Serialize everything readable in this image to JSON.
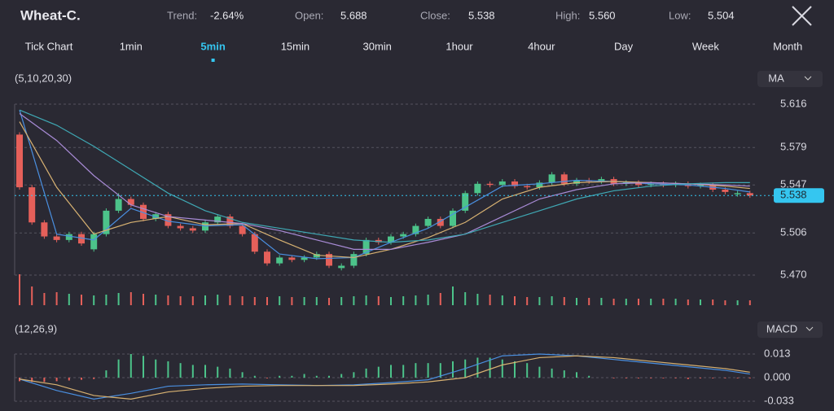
{
  "header": {
    "symbol": "Wheat-C.",
    "trend_label": "Trend:",
    "trend": "-2.64%",
    "open_label": "Open:",
    "open": "5.688",
    "close_label": "Close:",
    "close": "5.538",
    "high_label": "High:",
    "high": "5.560",
    "low_label": "Low:",
    "low": "5.504"
  },
  "tabs": [
    "Tick Chart",
    "1min",
    "5min",
    "15min",
    "30min",
    "1hour",
    "4hour",
    "Day",
    "Week",
    "Month"
  ],
  "active_tab": 2,
  "chart_data": [
    {
      "type": "candlestick",
      "legend": "(5,10,20,30)",
      "indicator": "MA",
      "up_color": "#4cc38a",
      "down_color": "#e5605a",
      "ylim": [
        5.47,
        5.616
      ],
      "yticks": [
        5.616,
        5.579,
        5.547,
        5.506,
        {
          "value": 5.47,
          "label": "5.470"
        }
      ],
      "last_price": {
        "value": 5.538,
        "label": "5.538"
      },
      "open": [
        5.59,
        5.545,
        5.515,
        5.503,
        5.5,
        5.505,
        5.492,
        5.505,
        5.525,
        5.535,
        5.53,
        5.518,
        5.522,
        5.512,
        5.51,
        5.508,
        5.515,
        5.52,
        5.512,
        5.505,
        5.49,
        5.48,
        5.485,
        5.483,
        5.485,
        5.488,
        5.476,
        5.478,
        5.488,
        5.5,
        5.498,
        5.503,
        5.505,
        5.512,
        5.518,
        5.512,
        5.525,
        5.54,
        5.548,
        5.547,
        5.55,
        5.546,
        5.545,
        5.549,
        5.556,
        5.548,
        5.551,
        5.55,
        5.552,
        5.548,
        5.549,
        5.547,
        5.548,
        5.547,
        5.548,
        5.546,
        5.547,
        5.543,
        5.539,
        5.54
      ],
      "high": [
        5.592,
        5.547,
        5.517,
        5.505,
        5.507,
        5.507,
        5.507,
        5.527,
        5.54,
        5.537,
        5.532,
        5.524,
        5.524,
        5.514,
        5.512,
        5.517,
        5.522,
        5.522,
        5.514,
        5.507,
        5.492,
        5.487,
        5.487,
        5.487,
        5.49,
        5.49,
        5.48,
        5.49,
        5.502,
        5.502,
        5.505,
        5.507,
        5.514,
        5.52,
        5.52,
        5.527,
        5.542,
        5.55,
        5.55,
        5.552,
        5.552,
        5.548,
        5.551,
        5.558,
        5.558,
        5.553,
        5.553,
        5.554,
        5.554,
        5.551,
        5.551,
        5.55,
        5.55,
        5.55,
        5.55,
        5.549,
        5.549,
        5.545,
        5.542,
        5.542
      ],
      "low": [
        5.543,
        5.513,
        5.501,
        5.498,
        5.498,
        5.495,
        5.49,
        5.503,
        5.523,
        5.528,
        5.516,
        5.516,
        5.51,
        5.508,
        5.506,
        5.506,
        5.513,
        5.51,
        5.503,
        5.488,
        5.478,
        5.478,
        5.481,
        5.481,
        5.483,
        5.476,
        5.474,
        5.476,
        5.486,
        5.496,
        5.496,
        5.501,
        5.503,
        5.51,
        5.51,
        5.51,
        5.523,
        5.538,
        5.545,
        5.545,
        5.544,
        5.543,
        5.543,
        5.547,
        5.546,
        5.546,
        5.548,
        5.548,
        5.546,
        5.546,
        5.545,
        5.545,
        5.545,
        5.545,
        5.544,
        5.544,
        5.541,
        5.539,
        5.537,
        5.536
      ],
      "close": [
        5.545,
        5.515,
        5.503,
        5.5,
        5.505,
        5.497,
        5.505,
        5.525,
        5.535,
        5.53,
        5.518,
        5.522,
        5.512,
        5.51,
        5.508,
        5.515,
        5.52,
        5.512,
        5.505,
        5.49,
        5.48,
        5.485,
        5.483,
        5.485,
        5.488,
        5.478,
        5.478,
        5.488,
        5.5,
        5.498,
        5.503,
        5.505,
        5.512,
        5.518,
        5.512,
        5.525,
        5.54,
        5.548,
        5.547,
        5.55,
        5.546,
        5.545,
        5.549,
        5.556,
        5.548,
        5.551,
        5.55,
        5.552,
        5.548,
        5.549,
        5.547,
        5.548,
        5.547,
        5.548,
        5.546,
        5.547,
        5.543,
        5.541,
        5.54,
        5.538
      ],
      "series": [
        {
          "color": "#4a8fe0",
          "x": [
            0,
            3,
            6,
            9,
            12,
            15,
            18,
            21,
            24,
            27,
            30,
            33,
            36,
            39,
            42,
            45,
            48,
            51,
            54,
            57,
            59
          ],
          "values": [
            5.611,
            5.505,
            5.5,
            5.527,
            5.516,
            5.512,
            5.513,
            5.488,
            5.484,
            5.485,
            5.498,
            5.51,
            5.528,
            5.546,
            5.548,
            5.551,
            5.55,
            5.548,
            5.547,
            5.544,
            5.541
          ]
        },
        {
          "color": "#d8b272",
          "x": [
            0,
            3,
            6,
            9,
            12,
            15,
            18,
            21,
            24,
            27,
            30,
            33,
            36,
            39,
            42,
            45,
            48,
            51,
            54,
            57,
            59
          ],
          "values": [
            5.601,
            5.545,
            5.505,
            5.515,
            5.52,
            5.513,
            5.514,
            5.5,
            5.487,
            5.485,
            5.492,
            5.502,
            5.515,
            5.535,
            5.545,
            5.549,
            5.55,
            5.549,
            5.548,
            5.546,
            5.544
          ]
        },
        {
          "color": "#a88bd6",
          "x": [
            0,
            3,
            6,
            9,
            12,
            15,
            18,
            21,
            24,
            27,
            30,
            33,
            36,
            39,
            42,
            45,
            48,
            51,
            54,
            57,
            59
          ],
          "values": [
            5.608,
            5.585,
            5.555,
            5.53,
            5.52,
            5.517,
            5.514,
            5.508,
            5.5,
            5.492,
            5.492,
            5.498,
            5.505,
            5.52,
            5.535,
            5.543,
            5.548,
            5.549,
            5.548,
            5.547,
            5.546
          ]
        },
        {
          "color": "#3fa8b4",
          "x": [
            0,
            3,
            6,
            9,
            12,
            15,
            18,
            21,
            24,
            27,
            30,
            33,
            36,
            39,
            42,
            45,
            48,
            51,
            54,
            57,
            59
          ],
          "values": [
            5.611,
            5.598,
            5.58,
            5.56,
            5.54,
            5.525,
            5.515,
            5.51,
            5.505,
            5.5,
            5.498,
            5.5,
            5.505,
            5.515,
            5.525,
            5.535,
            5.542,
            5.546,
            5.548,
            5.549,
            5.549
          ]
        }
      ]
    },
    {
      "type": "volume",
      "values": [
        380,
        230,
        150,
        160,
        140,
        130,
        120,
        130,
        150,
        160,
        140,
        130,
        120,
        110,
        110,
        120,
        130,
        120,
        110,
        100,
        100,
        110,
        100,
        100,
        100,
        90,
        100,
        110,
        120,
        110,
        100,
        110,
        120,
        130,
        150,
        230,
        160,
        140,
        130,
        120,
        110,
        100,
        100,
        110,
        100,
        90,
        90,
        90,
        80,
        80,
        80,
        80,
        80,
        80,
        70,
        70,
        70,
        60,
        60,
        60
      ]
    },
    {
      "type": "macd",
      "legend": "(12,26,9)",
      "indicator": "MACD",
      "ylim": [
        -0.033,
        0.013
      ],
      "yticks": [
        0.013,
        {
          "value": 0,
          "label": "0.000"
        },
        -0.033
      ],
      "values": [
        -0.005,
        -0.006,
        -0.006,
        -0.005,
        -0.004,
        -0.003,
        -0.002,
        0.004,
        0.01,
        0.013,
        0.012,
        0.01,
        0.009,
        0.008,
        0.007,
        0.007,
        0.006,
        0.005,
        0.003,
        0.001,
        -0.001,
        0.001,
        0.001,
        0.002,
        0.001,
        0.001,
        0.002,
        0.003,
        0.005,
        0.006,
        0.007,
        0.007,
        0.008,
        0.008,
        0.008,
        0.009,
        0.01,
        0.011,
        0.011,
        0.01,
        0.009,
        0.008,
        0.006,
        0.005,
        0.004,
        0.003,
        0.001,
        0.0,
        -0.001,
        -0.001,
        -0.001,
        -0.001,
        -0.001,
        -0.001,
        -0.002,
        -0.001,
        -0.001,
        -0.001,
        -0.001,
        -0.001
      ],
      "series": [
        {
          "color": "#4a8fe0",
          "x": [
            0,
            3,
            6,
            9,
            12,
            15,
            18,
            21,
            24,
            27,
            30,
            33,
            36,
            39,
            42,
            45,
            48,
            51,
            54,
            57,
            59
          ],
          "values": [
            -0.002,
            -0.018,
            -0.03,
            -0.022,
            -0.012,
            -0.01,
            -0.009,
            -0.01,
            -0.011,
            -0.01,
            -0.007,
            -0.003,
            0.005,
            0.012,
            0.013,
            0.012,
            0.01,
            0.008,
            0.006,
            0.004,
            0.002
          ]
        },
        {
          "color": "#d8b272",
          "x": [
            0,
            3,
            6,
            9,
            12,
            15,
            18,
            21,
            24,
            27,
            30,
            33,
            36,
            39,
            42,
            45,
            48,
            51,
            54,
            57,
            59
          ],
          "values": [
            -0.002,
            -0.01,
            -0.025,
            -0.03,
            -0.02,
            -0.015,
            -0.012,
            -0.011,
            -0.011,
            -0.011,
            -0.009,
            -0.006,
            0.0,
            0.007,
            0.011,
            0.012,
            0.011,
            0.009,
            0.007,
            0.005,
            0.003
          ]
        }
      ]
    }
  ]
}
